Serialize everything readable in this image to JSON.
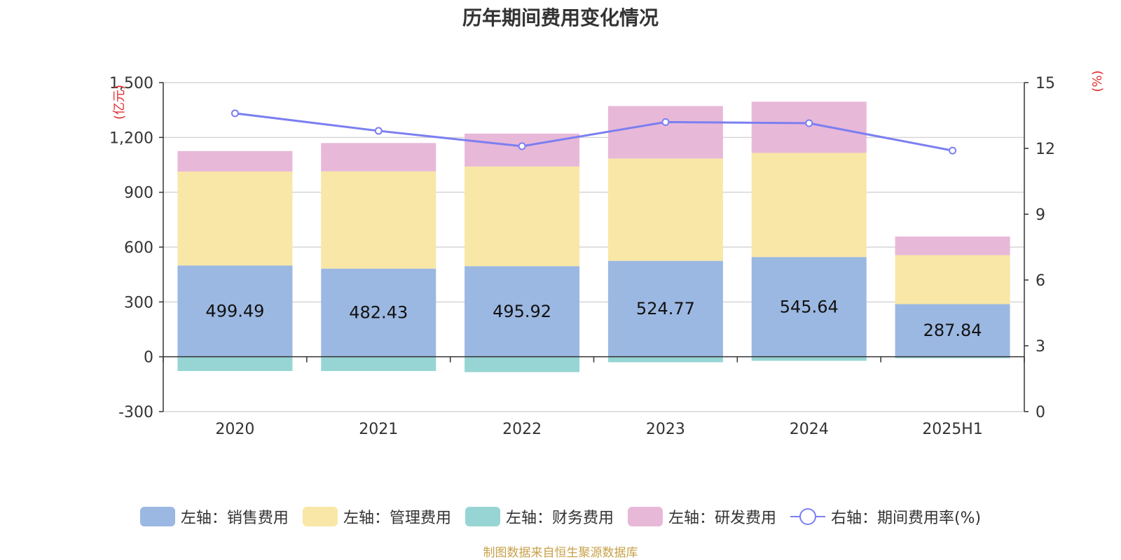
{
  "chart_data": {
    "type": "bar",
    "stacked": true,
    "title": "历年期间费用变化情况",
    "left_axis_unit": "(亿元)",
    "right_axis_unit": "(%)",
    "categories": [
      "2020",
      "2021",
      "2022",
      "2023",
      "2024",
      "2025H1"
    ],
    "left_ylim": [
      -300,
      1500
    ],
    "left_ticks": [
      "-300",
      "0",
      "300",
      "600",
      "900",
      "1,200",
      "1,500"
    ],
    "left_tick_values": [
      -300,
      0,
      300,
      600,
      900,
      1200,
      1500
    ],
    "right_ylim": [
      0,
      15
    ],
    "right_ticks": [
      "0",
      "3",
      "6",
      "9",
      "12",
      "15"
    ],
    "right_tick_values": [
      0,
      3,
      6,
      9,
      12,
      15
    ],
    "grid": true,
    "legend_position": "bottom",
    "series": [
      {
        "name": "左轴：销售费用",
        "axis": "left",
        "type": "bar",
        "color": "#9bb8e2",
        "values": [
          499.49,
          482.43,
          495.92,
          524.77,
          545.64,
          287.84
        ],
        "data_labels": [
          "499.49",
          "482.43",
          "495.92",
          "524.77",
          "545.64",
          "287.84"
        ]
      },
      {
        "name": "左轴：管理费用",
        "axis": "left",
        "type": "bar",
        "color": "#f8e7a6",
        "values": [
          514,
          532,
          545,
          560,
          570,
          268
        ]
      },
      {
        "name": "左轴：财务费用",
        "axis": "left",
        "type": "bar",
        "color": "#97d5d4",
        "values": [
          -78,
          -78,
          -84,
          -30,
          -22,
          -8
        ]
      },
      {
        "name": "左轴：研发费用",
        "axis": "left",
        "type": "bar",
        "color": "#e8b8d9",
        "values": [
          112,
          155,
          180,
          287,
          280,
          102
        ]
      },
      {
        "name": "右轴：期间费用率(%)",
        "axis": "right",
        "type": "line",
        "color": "#7b7ff0",
        "values": [
          13.6,
          12.8,
          12.1,
          13.2,
          13.15,
          11.9
        ]
      }
    ]
  },
  "source_note": "制图数据来自恒生聚源数据库"
}
